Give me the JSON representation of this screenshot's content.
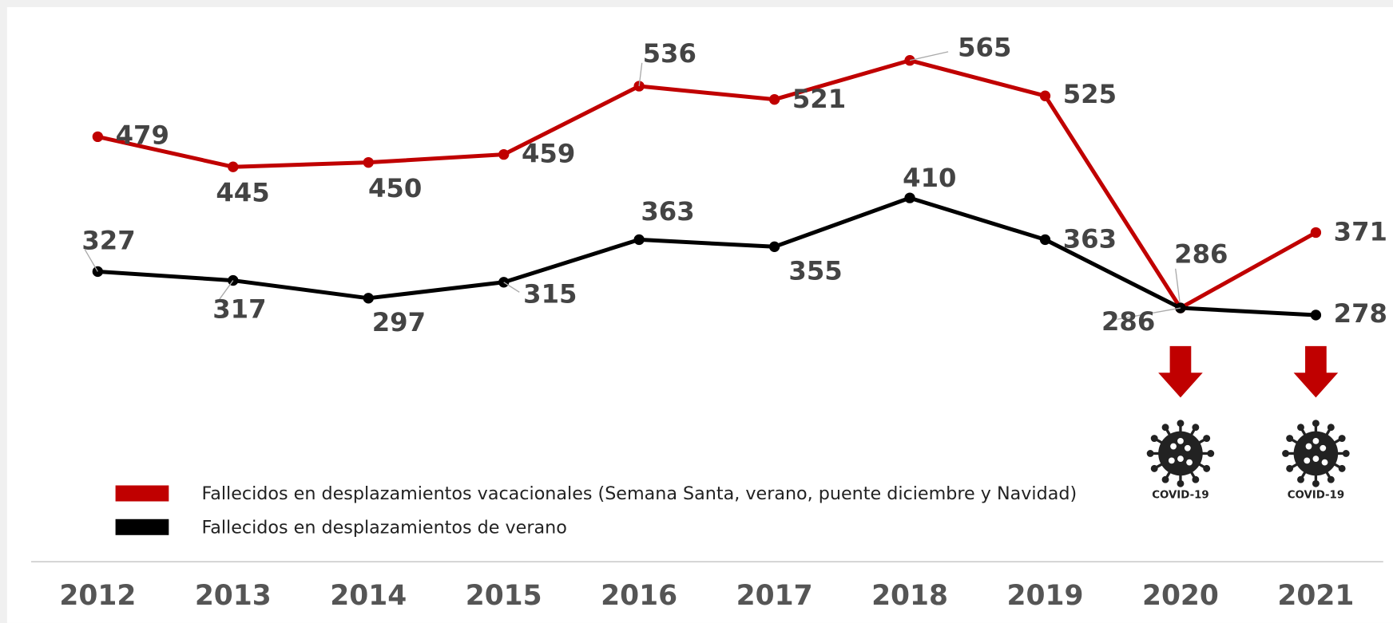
{
  "chart_data": {
    "type": "line",
    "categories": [
      "2012",
      "2013",
      "2014",
      "2015",
      "2016",
      "2017",
      "2018",
      "2019",
      "2020",
      "2021"
    ],
    "series": [
      {
        "name": "Fallecidos en desplazamientos vacacionales (Semana Santa, verano, puente diciembre y Navidad)",
        "color": "#c00000",
        "values": [
          479,
          445,
          450,
          459,
          536,
          521,
          565,
          525,
          286,
          371
        ]
      },
      {
        "name": "Fallecidos en desplazamientos de verano",
        "color": "#000000",
        "values": [
          327,
          317,
          297,
          315,
          363,
          355,
          410,
          363,
          286,
          278
        ]
      }
    ],
    "annotations": [
      "COVID-19",
      "COVID-19"
    ],
    "annotation_color": "#c00000"
  }
}
